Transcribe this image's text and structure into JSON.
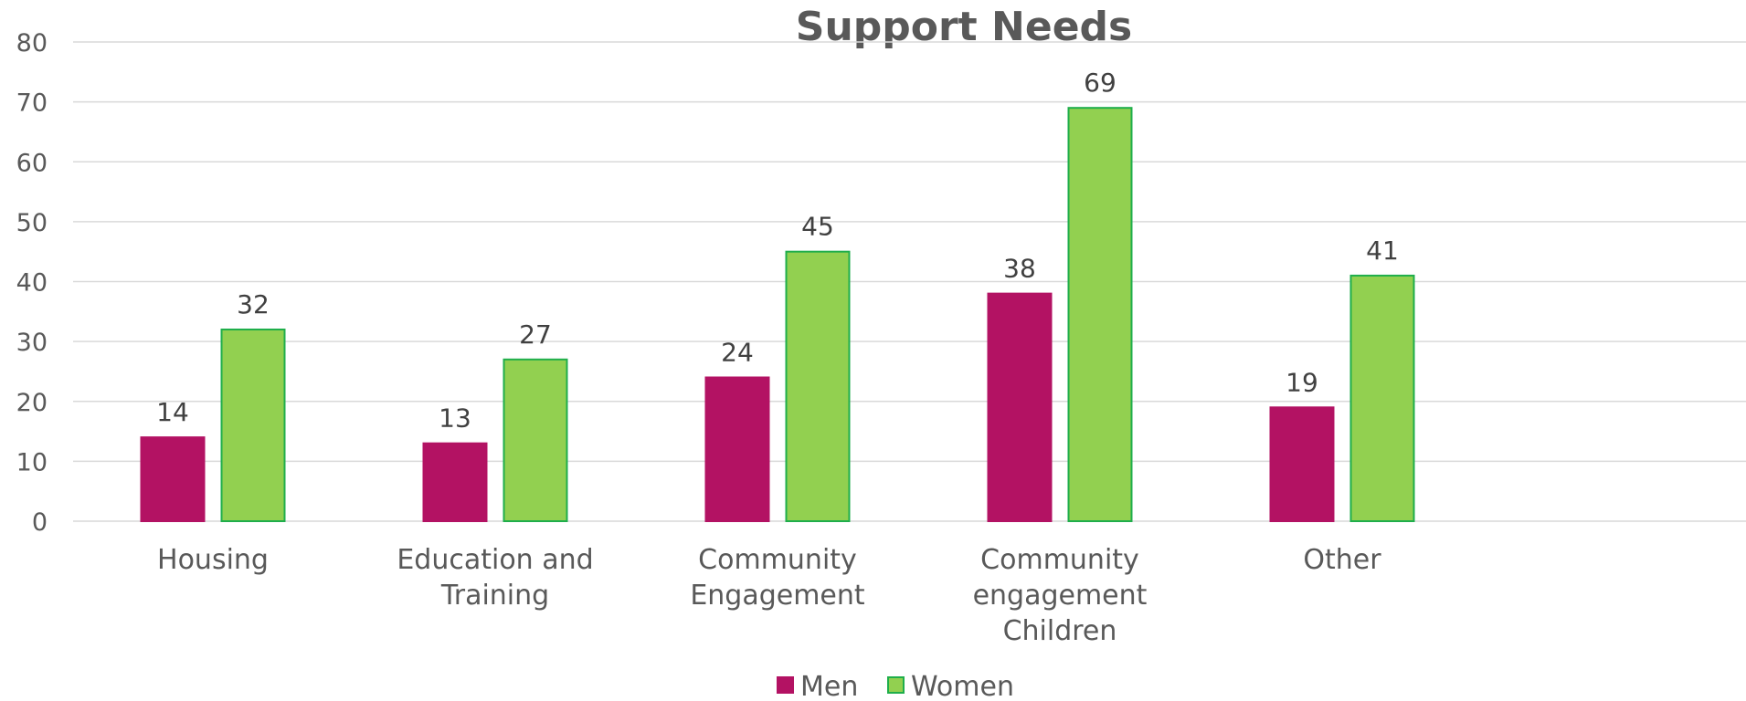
{
  "chart_data": {
    "type": "bar",
    "title": "Support Needs",
    "categories": [
      [
        "Housing"
      ],
      [
        "Education and",
        "Training"
      ],
      [
        "Community",
        "Engagement"
      ],
      [
        "Community",
        "engagement",
        "Children"
      ],
      [
        "Other"
      ]
    ],
    "series": [
      {
        "name": "Men",
        "values": [
          14,
          13,
          24,
          38,
          19
        ],
        "color": "#b31263",
        "stroke": "#b31263"
      },
      {
        "name": "Women",
        "values": [
          32,
          27,
          45,
          69,
          41
        ],
        "color": "#92d050",
        "stroke": "#1fae4b"
      }
    ],
    "ylim": [
      0,
      80
    ],
    "yticks": [
      0,
      10,
      20,
      30,
      40,
      50,
      60,
      70,
      80
    ],
    "grid": true,
    "legend_position": "bottom",
    "data_labels": true
  }
}
